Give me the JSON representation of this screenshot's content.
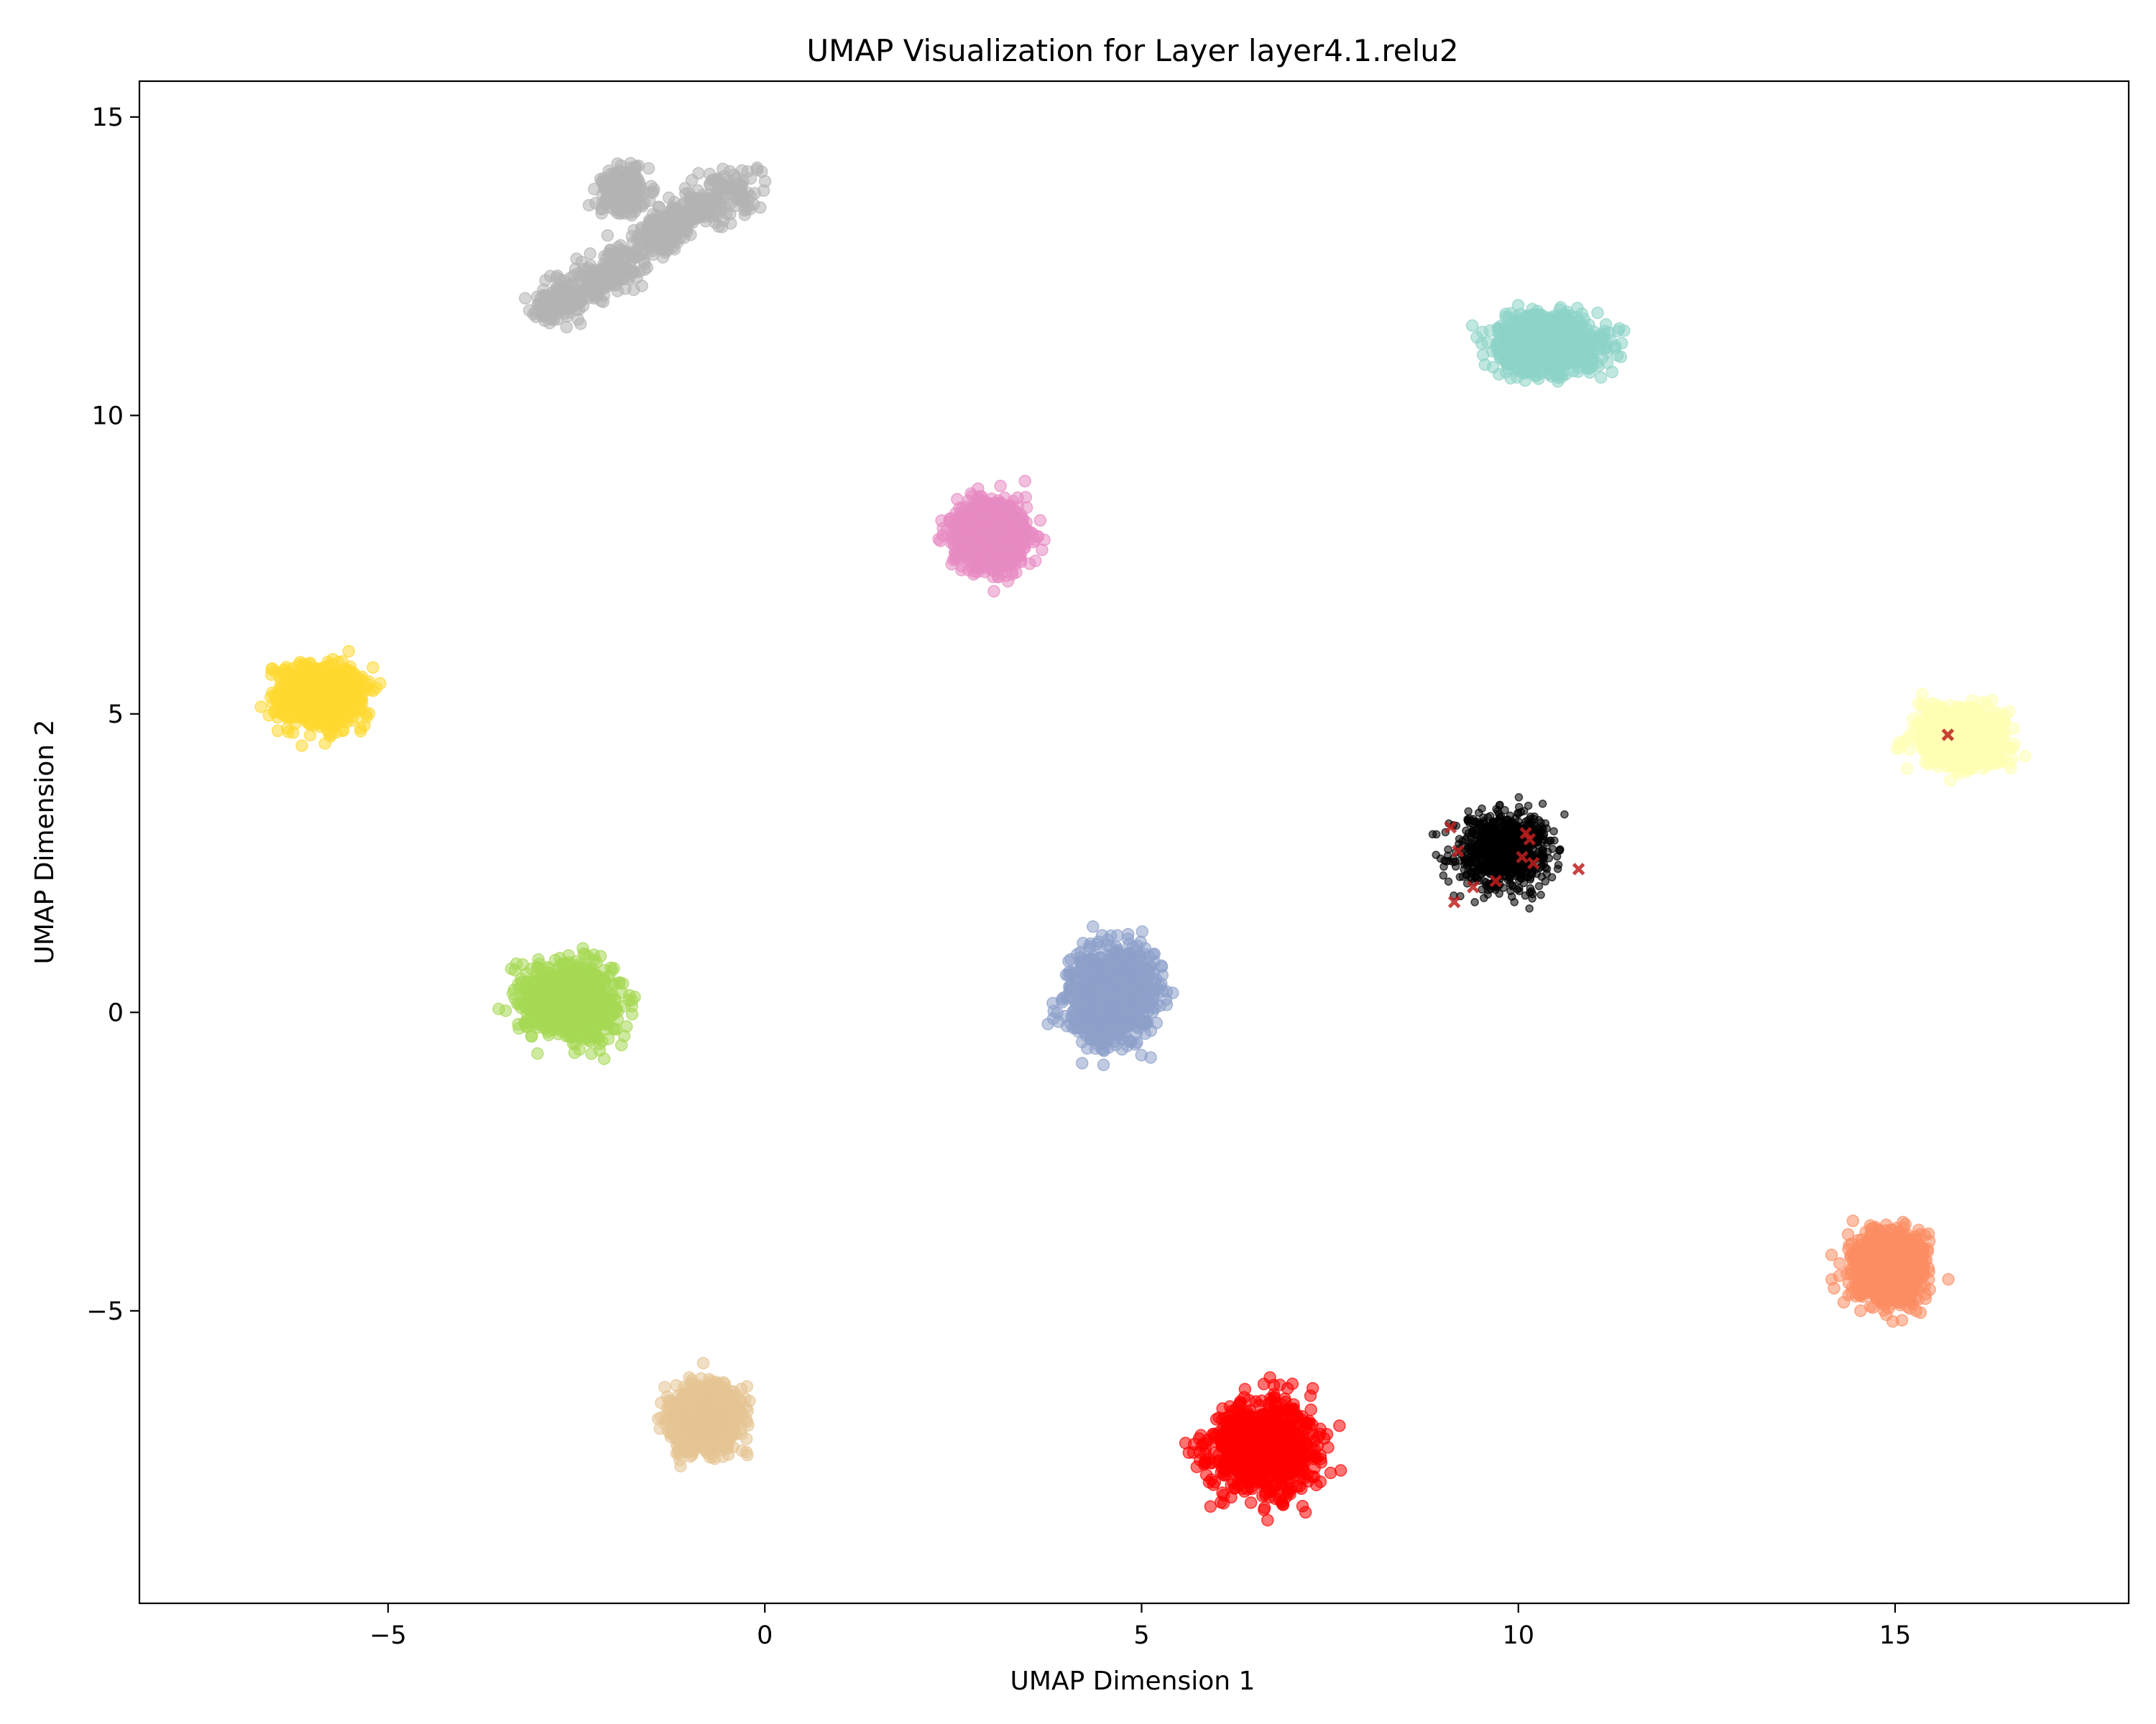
{
  "chart_data": {
    "type": "scatter",
    "title": "UMAP Visualization for Layer layer4.1.relu2",
    "xlabel": "UMAP Dimension 1",
    "ylabel": "UMAP Dimension 2",
    "xlim": [
      -8.3,
      18.1
    ],
    "ylim": [
      -9.9,
      15.6
    ],
    "xticks": [
      -5,
      0,
      5,
      10,
      15
    ],
    "yticks": [
      -5,
      0,
      5,
      10,
      15
    ],
    "xtick_labels": [
      "−5",
      "0",
      "5",
      "10",
      "15"
    ],
    "ytick_labels": [
      "−5",
      "0",
      "5",
      "10",
      "15"
    ],
    "grid": false,
    "legend": "none",
    "clusters": [
      {
        "color": "#b3b3b3",
        "center": [
          -1.5,
          13.0
        ],
        "shape": "elongated, from (-2.9, 11.8) to (-0.3, 13.8)"
      },
      {
        "color": "#8dd3c7",
        "center": [
          10.4,
          11.2
        ],
        "range_x": [
          9.1,
          11.6
        ],
        "range_y": [
          10.3,
          12.1
        ]
      },
      {
        "color": "#e78ac3",
        "center": [
          3.0,
          8.0
        ],
        "range_x": [
          2.1,
          3.9
        ],
        "range_y": [
          6.9,
          8.9
        ]
      },
      {
        "color": "#ffd92f",
        "center": [
          -5.9,
          5.3
        ],
        "range_x": [
          -6.8,
          -4.9
        ],
        "range_y": [
          4.4,
          6.2
        ]
      },
      {
        "color": "#ffffb3",
        "center": [
          15.9,
          4.6
        ],
        "range_x": [
          14.9,
          16.9
        ],
        "range_y": [
          3.7,
          5.5
        ]
      },
      {
        "color": "#000000",
        "center": [
          9.8,
          2.7
        ],
        "range_x": [
          8.6,
          10.8
        ],
        "range_y": [
          1.6,
          3.8
        ]
      },
      {
        "color": "#a6d854",
        "center": [
          -2.6,
          0.2
        ],
        "range_x": [
          -3.7,
          -1.4
        ],
        "range_y": [
          -0.9,
          1.3
        ]
      },
      {
        "color": "#8da0cb",
        "center": [
          4.6,
          0.3
        ],
        "range_x": [
          3.4,
          5.5
        ],
        "range_y": [
          -1.0,
          1.8
        ]
      },
      {
        "color": "#fc8d62",
        "center": [
          14.9,
          -4.3
        ],
        "range_x": [
          14.0,
          15.8
        ],
        "range_y": [
          -5.5,
          -3.3
        ]
      },
      {
        "color": "#e5c494",
        "center": [
          -0.8,
          -6.8
        ],
        "range_x": [
          -1.6,
          0.1
        ],
        "range_y": [
          -7.7,
          -5.8
        ]
      },
      {
        "color": "#ff0000",
        "center": [
          6.6,
          -7.3
        ],
        "range_x": [
          5.3,
          7.8
        ],
        "range_y": [
          -8.6,
          -5.8
        ]
      }
    ],
    "highlight_points": {
      "color": "#c0201f",
      "points": [
        [
          9.1,
          3.1
        ],
        [
          9.2,
          2.7
        ],
        [
          9.4,
          2.1
        ],
        [
          9.15,
          1.85
        ],
        [
          9.7,
          2.2
        ],
        [
          10.05,
          2.6
        ],
        [
          10.1,
          3.0
        ],
        [
          10.15,
          2.9
        ],
        [
          10.2,
          2.5
        ],
        [
          10.8,
          2.4
        ],
        [
          15.7,
          4.65
        ]
      ]
    }
  }
}
